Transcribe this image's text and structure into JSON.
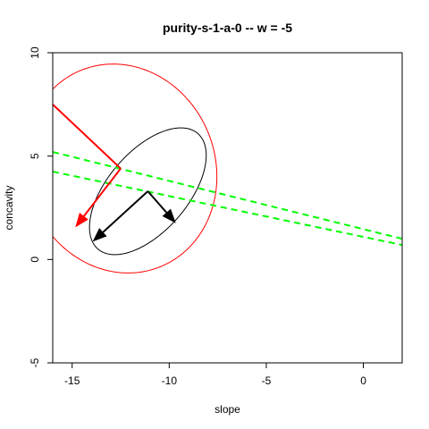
{
  "chart_data": {
    "type": "scatter",
    "title": "purity-s-1-a-0  -- w = -5",
    "xlabel": "slope",
    "ylabel": "concavity",
    "xlim": [
      -16,
      2
    ],
    "ylim": [
      -5,
      10
    ],
    "x_ticks": [
      -15,
      -10,
      -5,
      0
    ],
    "x_tick_labels": [
      "-15",
      "-10",
      "-5",
      "0"
    ],
    "y_ticks": [
      -5,
      0,
      5,
      10
    ],
    "y_tick_labels": [
      "-5",
      "0",
      "5",
      "10"
    ],
    "grid": false,
    "legend": "none",
    "ellipses": [
      {
        "name": "red-ellipse",
        "color": "#ff0000",
        "cx": -12.5,
        "cy": 4.4,
        "rx": 5.2,
        "ry": 4.8,
        "tilt_deg": -52
      },
      {
        "name": "black-ellipse",
        "color": "#000000",
        "cx": -11.1,
        "cy": 3.3,
        "rx": 3.8,
        "ry": 2.0,
        "tilt_deg": 46
      }
    ],
    "lines": [
      {
        "name": "green-dashed-upper",
        "color": "#00ff00",
        "dash": true,
        "x": [
          -16,
          2
        ],
        "y": [
          5.2,
          1.0
        ]
      },
      {
        "name": "green-dashed-lower",
        "color": "#00ff00",
        "dash": true,
        "x": [
          -16,
          2
        ],
        "y": [
          4.25,
          0.7
        ]
      }
    ],
    "segments": [
      {
        "name": "red-axis-line",
        "color": "#ff0000",
        "x1": -16,
        "y1": 7.5,
        "x2": -12.5,
        "y2": 4.4,
        "arrow": false
      },
      {
        "name": "red-axis-arrow",
        "color": "#ff0000",
        "x1": -12.5,
        "y1": 4.4,
        "x2": -14.8,
        "y2": 1.6,
        "arrow": true
      },
      {
        "name": "black-axis-arrow-right",
        "color": "#000000",
        "x1": -11.1,
        "y1": 3.3,
        "x2": -9.7,
        "y2": 1.8,
        "arrow": true
      },
      {
        "name": "black-axis-arrow-left",
        "color": "#000000",
        "x1": -11.1,
        "y1": 3.3,
        "x2": -13.9,
        "y2": 0.9,
        "arrow": true
      }
    ]
  }
}
